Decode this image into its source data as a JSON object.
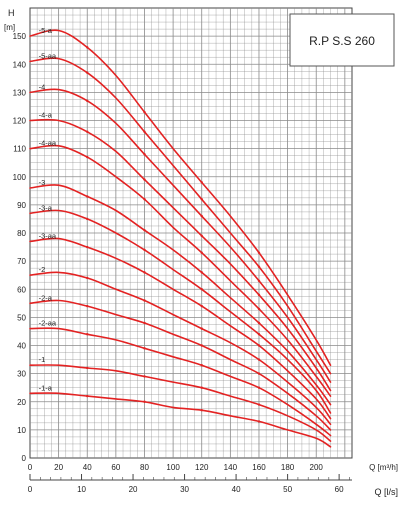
{
  "chart_data": {
    "type": "line",
    "title": "R.P S.S 260",
    "ylabel": "H",
    "yunit": "[m]",
    "xlabel_primary": "Q [m³/h]",
    "xlabel_secondary": "Q [l/s]",
    "xlim": [
      0,
      225
    ],
    "ylim": [
      0,
      160
    ],
    "secondary_xlim": [
      0,
      62.5
    ],
    "grid": true,
    "curve_color": "#e32222",
    "grid_color": "#8a8a8a",
    "y_ticks": [
      "0",
      "10",
      "20",
      "30",
      "40",
      "50",
      "60",
      "70",
      "80",
      "90",
      "100",
      "110",
      "120",
      "130",
      "140",
      "150"
    ],
    "x_ticks": [
      "0",
      "20",
      "40",
      "60",
      "80",
      "100",
      "120",
      "140",
      "160",
      "180",
      "200"
    ],
    "secondary_ticks": [
      "0",
      "10",
      "20",
      "30",
      "40",
      "50",
      "60"
    ],
    "series": [
      {
        "name": "-5-a",
        "x": [
          0,
          20,
          40,
          60,
          80,
          100,
          120,
          140,
          160,
          180,
          200,
          210
        ],
        "y": [
          150,
          152,
          146,
          136,
          123,
          110,
          98,
          86,
          73,
          58,
          42,
          33
        ]
      },
      {
        "name": "-5-aa",
        "x": [
          0,
          20,
          40,
          60,
          80,
          100,
          120,
          140,
          160,
          180,
          200,
          210
        ],
        "y": [
          141,
          142,
          137,
          128,
          116,
          104,
          92,
          80,
          68,
          54,
          38,
          30
        ]
      },
      {
        "name": "-4",
        "x": [
          0,
          20,
          40,
          60,
          80,
          100,
          120,
          140,
          160,
          180,
          200,
          210
        ],
        "y": [
          130,
          131,
          127,
          119,
          108,
          97,
          86,
          75,
          63,
          50,
          35,
          27
        ]
      },
      {
        "name": "-4-a",
        "x": [
          0,
          20,
          40,
          60,
          80,
          100,
          120,
          140,
          160,
          180,
          200,
          210
        ],
        "y": [
          120,
          120,
          116,
          109,
          99,
          89,
          79,
          69,
          58,
          46,
          32,
          24
        ]
      },
      {
        "name": "-4-aa",
        "x": [
          0,
          20,
          40,
          60,
          80,
          100,
          120,
          140,
          160,
          180,
          200,
          210
        ],
        "y": [
          110,
          111,
          107,
          100,
          92,
          82,
          73,
          63,
          53,
          42,
          29,
          22
        ]
      },
      {
        "name": "-3",
        "x": [
          0,
          20,
          40,
          60,
          80,
          100,
          120,
          140,
          160,
          180,
          200,
          210
        ],
        "y": [
          96,
          97,
          93,
          88,
          81,
          74,
          66,
          57,
          48,
          38,
          26,
          19
        ]
      },
      {
        "name": "-3-a",
        "x": [
          0,
          20,
          40,
          60,
          80,
          100,
          120,
          140,
          160,
          180,
          200,
          210
        ],
        "y": [
          87,
          88,
          85,
          80,
          74,
          67,
          60,
          52,
          44,
          35,
          24,
          16
        ]
      },
      {
        "name": "-3-aa",
        "x": [
          0,
          20,
          40,
          60,
          80,
          100,
          120,
          140,
          160,
          180,
          200,
          210
        ],
        "y": [
          77,
          78,
          75,
          71,
          66,
          60,
          54,
          47,
          40,
          31,
          21,
          14
        ]
      },
      {
        "name": "-2",
        "x": [
          0,
          20,
          40,
          60,
          80,
          100,
          120,
          140,
          160,
          180,
          200,
          210
        ],
        "y": [
          65,
          66,
          64,
          60,
          56,
          51,
          46,
          41,
          35,
          27,
          18,
          12
        ]
      },
      {
        "name": "-2-a",
        "x": [
          0,
          20,
          40,
          60,
          80,
          100,
          120,
          140,
          160,
          180,
          200,
          210
        ],
        "y": [
          55,
          56,
          54,
          51,
          48,
          44,
          40,
          35,
          30,
          23,
          15,
          10
        ]
      },
      {
        "name": "-2-aa",
        "x": [
          0,
          20,
          40,
          60,
          80,
          100,
          120,
          140,
          160,
          180,
          200,
          210
        ],
        "y": [
          46,
          46,
          44,
          42,
          39,
          36,
          33,
          29,
          25,
          19,
          12,
          8
        ]
      },
      {
        "name": "-1",
        "x": [
          0,
          20,
          40,
          60,
          80,
          100,
          120,
          140,
          160,
          180,
          200,
          210
        ],
        "y": [
          33,
          33,
          32,
          31,
          29,
          27,
          25,
          22,
          19,
          15,
          10,
          6
        ]
      },
      {
        "name": "-1-a",
        "x": [
          0,
          20,
          40,
          60,
          80,
          100,
          120,
          140,
          160,
          180,
          200,
          210
        ],
        "y": [
          23,
          23,
          22,
          21,
          20,
          18,
          17,
          15,
          13,
          10,
          7,
          4
        ]
      }
    ]
  }
}
